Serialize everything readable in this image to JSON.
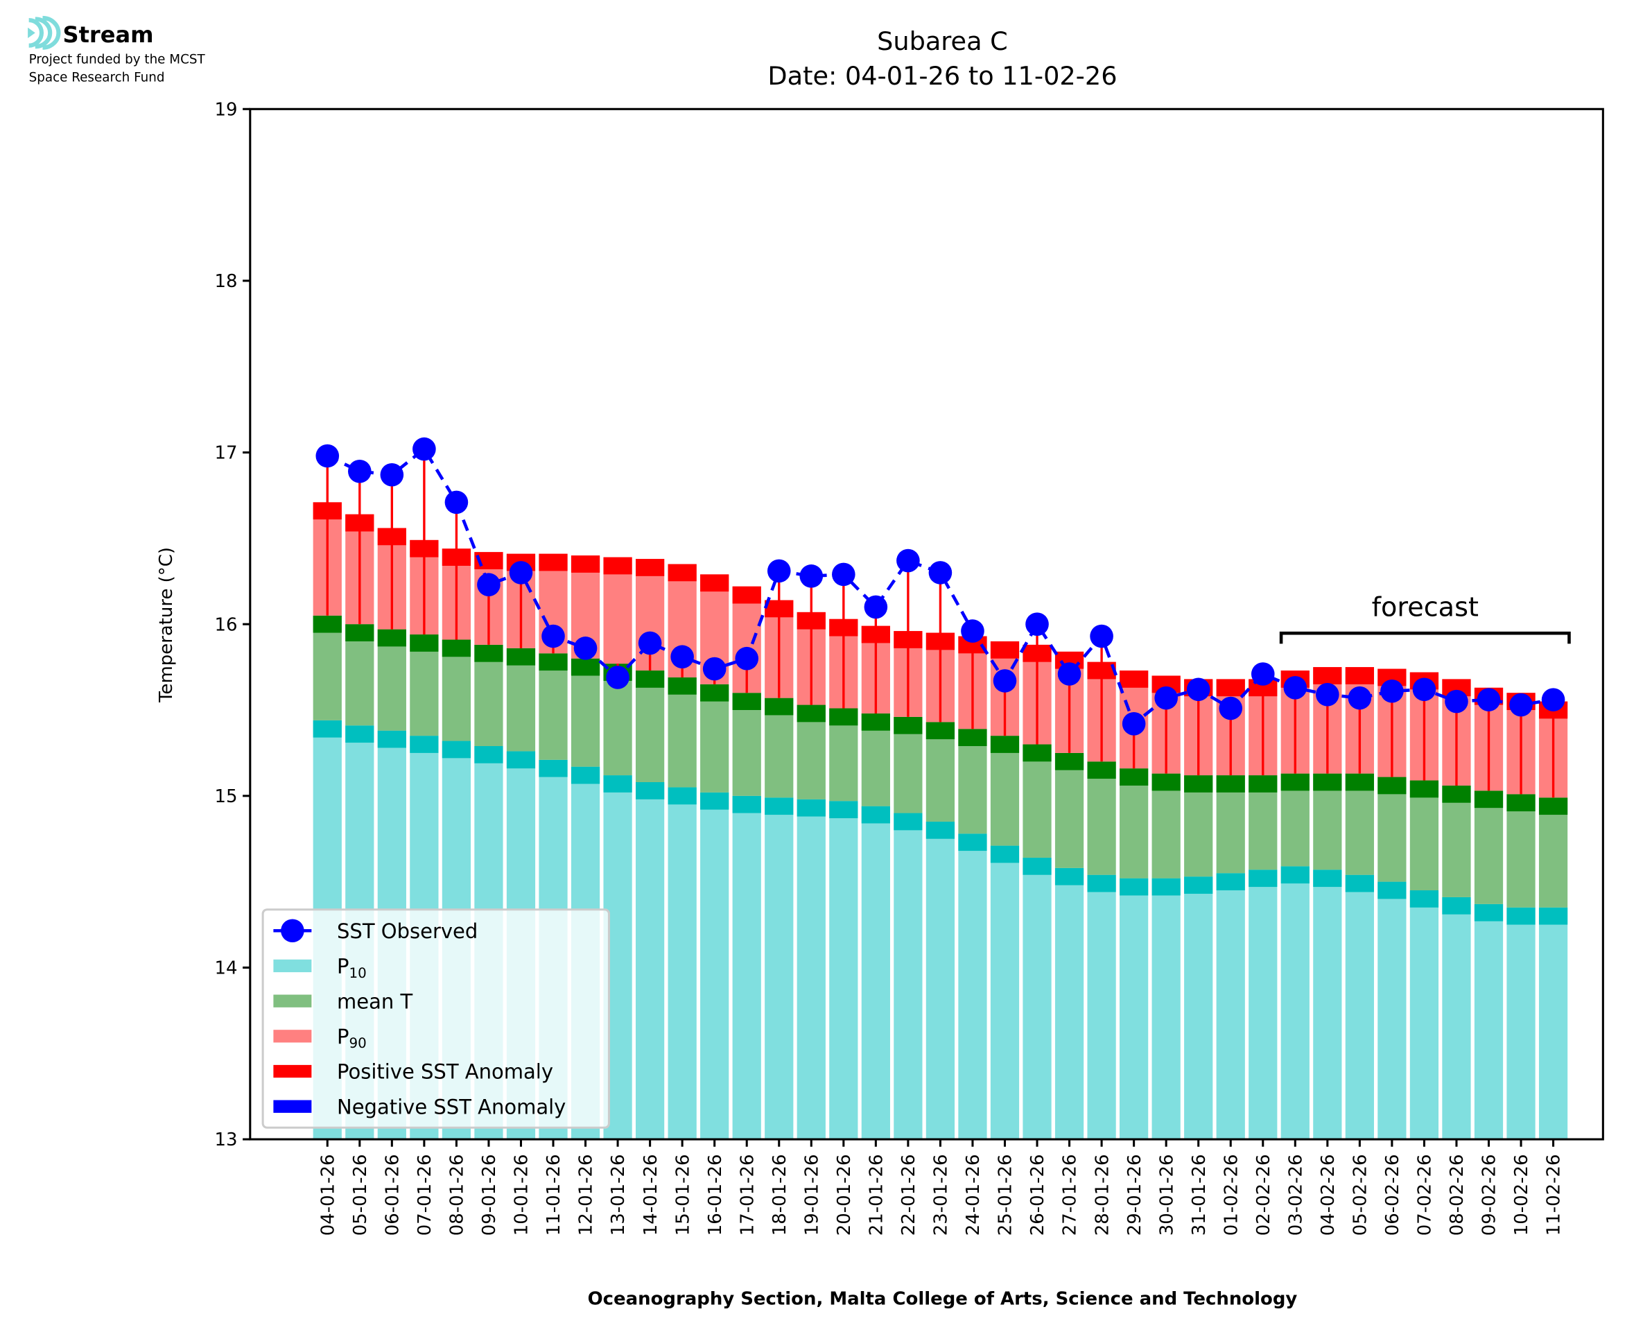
{
  "logo": {
    "name": "Stream",
    "line1": "Project funded by the MCST",
    "line2": "Space Research Fund",
    "accent_color": "#7fdcdc"
  },
  "chart_data": {
    "type": "bar",
    "title": "Subarea C",
    "subtitle": "Date: 04-01-26 to 11-02-26",
    "xlabel": "Oceanography Section, Malta College of Arts, Science and Technology",
    "ylabel": "Temperature (°C)",
    "ylim": [
      13,
      19
    ],
    "yticks": [
      "13",
      "14",
      "15",
      "16",
      "17",
      "18",
      "19"
    ],
    "grid": false,
    "legend_position": "lower-left",
    "annotation": {
      "text": "forecast",
      "start_category": "03-02-26",
      "end_category": "11-02-26"
    },
    "categories": [
      "04-01-26",
      "05-01-26",
      "06-01-26",
      "07-01-26",
      "08-01-26",
      "09-01-26",
      "10-01-26",
      "11-01-26",
      "12-01-26",
      "13-01-26",
      "14-01-26",
      "15-01-26",
      "16-01-26",
      "17-01-26",
      "18-01-26",
      "19-01-26",
      "20-01-26",
      "21-01-26",
      "22-01-26",
      "23-01-26",
      "24-01-26",
      "25-01-26",
      "26-01-26",
      "27-01-26",
      "28-01-26",
      "29-01-26",
      "30-01-26",
      "31-01-26",
      "01-02-26",
      "02-02-26",
      "03-02-26",
      "04-02-26",
      "05-02-26",
      "06-02-26",
      "07-02-26",
      "08-02-26",
      "09-02-26",
      "10-02-26",
      "11-02-26"
    ],
    "series": [
      {
        "name": "P10",
        "label": "P",
        "sub": "10",
        "color": "#80dfdf",
        "band_color": "#00bfbf",
        "values": [
          15.44,
          15.41,
          15.38,
          15.35,
          15.32,
          15.29,
          15.26,
          15.21,
          15.17,
          15.12,
          15.08,
          15.05,
          15.02,
          15.0,
          14.99,
          14.98,
          14.97,
          14.94,
          14.9,
          14.85,
          14.78,
          14.71,
          14.64,
          14.58,
          14.54,
          14.52,
          14.52,
          14.53,
          14.55,
          14.57,
          14.59,
          14.57,
          14.54,
          14.5,
          14.45,
          14.41,
          14.37,
          14.35,
          14.35
        ]
      },
      {
        "name": "mean T",
        "label": "mean T",
        "sub": "",
        "color": "#80bf80",
        "band_color": "#008000",
        "values": [
          16.05,
          16.0,
          15.97,
          15.94,
          15.91,
          15.88,
          15.86,
          15.83,
          15.8,
          15.77,
          15.73,
          15.69,
          15.65,
          15.6,
          15.57,
          15.53,
          15.51,
          15.48,
          15.46,
          15.43,
          15.39,
          15.35,
          15.3,
          15.25,
          15.2,
          15.16,
          15.13,
          15.12,
          15.12,
          15.12,
          15.13,
          15.13,
          15.13,
          15.11,
          15.09,
          15.06,
          15.03,
          15.01,
          14.99
        ]
      },
      {
        "name": "P90",
        "label": "P",
        "sub": "90",
        "color": "#ff8080",
        "band_color": "#ff0000",
        "values": [
          16.71,
          16.64,
          16.56,
          16.49,
          16.44,
          16.42,
          16.41,
          16.41,
          16.4,
          16.39,
          16.38,
          16.35,
          16.29,
          16.22,
          16.14,
          16.07,
          16.03,
          15.99,
          15.96,
          15.95,
          15.93,
          15.9,
          15.88,
          15.84,
          15.78,
          15.73,
          15.7,
          15.68,
          15.68,
          15.68,
          15.73,
          15.75,
          15.75,
          15.74,
          15.72,
          15.68,
          15.63,
          15.6,
          15.55
        ]
      },
      {
        "name": "SST Observed",
        "label": "SST Observed",
        "color": "#0000ff",
        "style": "dashed-line-circle-markers",
        "values": [
          16.98,
          16.89,
          16.87,
          17.02,
          16.71,
          16.23,
          16.3,
          15.93,
          15.86,
          15.69,
          15.89,
          15.81,
          15.74,
          15.8,
          16.31,
          16.28,
          16.29,
          16.1,
          16.37,
          16.3,
          15.96,
          15.67,
          16.0,
          15.71,
          15.93,
          15.42,
          15.57,
          15.62,
          15.51,
          15.71,
          15.63,
          15.59,
          15.57,
          15.61,
          15.62,
          15.55,
          15.56,
          15.53,
          15.56
        ]
      }
    ],
    "legend": [
      {
        "label": "SST Observed",
        "sub": "",
        "kind": "line-marker",
        "color": "#0000ff"
      },
      {
        "label": "P",
        "sub": "10",
        "kind": "patch",
        "color": "#80dfdf"
      },
      {
        "label": "mean T",
        "sub": "",
        "kind": "patch",
        "color": "#80bf80"
      },
      {
        "label": "P",
        "sub": "90",
        "kind": "patch",
        "color": "#ff8080"
      },
      {
        "label": "Positive SST Anomaly",
        "sub": "",
        "kind": "patch",
        "color": "#ff0000"
      },
      {
        "label": "Negative SST Anomaly",
        "sub": "",
        "kind": "patch",
        "color": "#0000ff"
      }
    ],
    "anomaly_colors": {
      "positive": "#ff0000",
      "negative": "#0000ff"
    }
  }
}
